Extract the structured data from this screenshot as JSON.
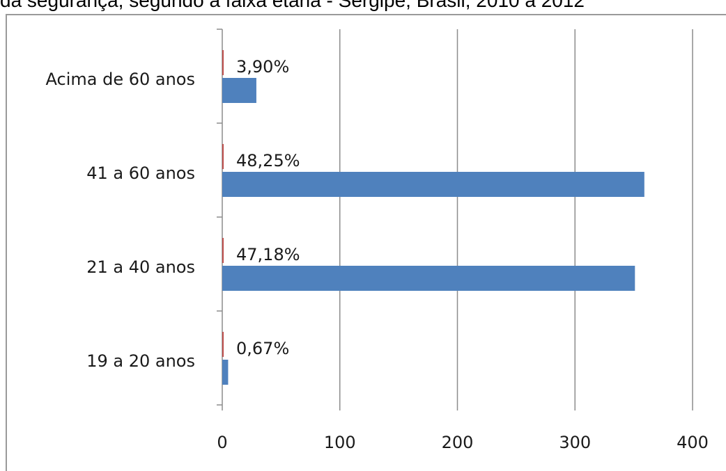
{
  "header_text": "da segurança, segundo a faixa etária - Sergipe, Brasil, 2010 a 2012",
  "chart_data": {
    "type": "bar",
    "orientation": "horizontal",
    "categories": [
      "Acima de 60 anos",
      "41 a 60 anos",
      "21 a 40 anos",
      "19 a 20 anos"
    ],
    "series": [
      {
        "color": "#4f81bd",
        "values": [
          29,
          359,
          351,
          5
        ]
      },
      {
        "color": "#c0504d",
        "values": [
          0,
          0,
          0,
          0
        ]
      }
    ],
    "data_labels": [
      "3,90%",
      "48,25%",
      "47,18%",
      "0,67%"
    ],
    "xlim": [
      0,
      400
    ],
    "x_ticks": [
      0,
      100,
      200,
      300,
      400
    ],
    "x_tick_labels": [
      "0",
      "100",
      "200",
      "300",
      "400"
    ],
    "grid": true,
    "legend": "none"
  }
}
